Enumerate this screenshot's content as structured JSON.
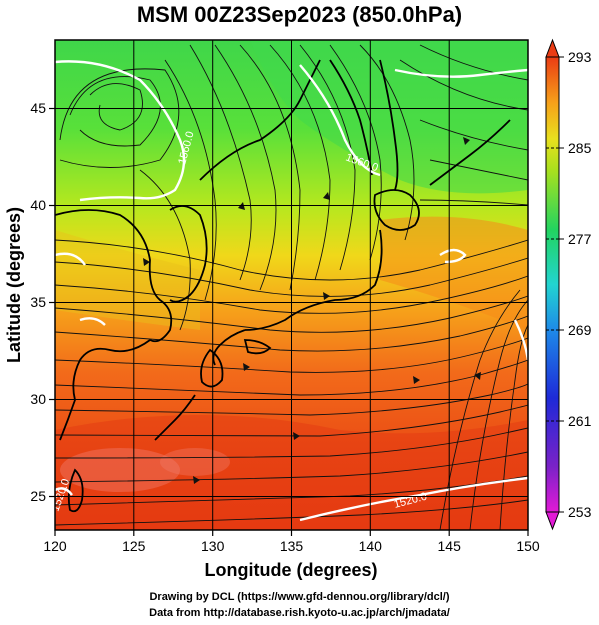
{
  "title": "MSM 00Z23Sep2023 (850.0hPa)",
  "map": {
    "xlabel": "Longitude (degrees)",
    "ylabel": "Latitude  (degrees)",
    "lon_ticks": [
      "120",
      "125",
      "130",
      "135",
      "140",
      "145",
      "150"
    ],
    "lat_ticks": [
      "25",
      "30",
      "35",
      "40",
      "45"
    ],
    "contour_labels": [
      "1560.0",
      "1560.0",
      "1520.0",
      "1520.0"
    ]
  },
  "colorbar": {
    "ticks": [
      "293",
      "285",
      "277",
      "269",
      "261",
      "253"
    ]
  },
  "credits": {
    "line1": "Drawing by DCL (https://www.gfd-dennou.org/library/dcl/)",
    "line2": "Data from http://database.rish.kyoto-u.ac.jp/arch/jmadata/"
  }
}
